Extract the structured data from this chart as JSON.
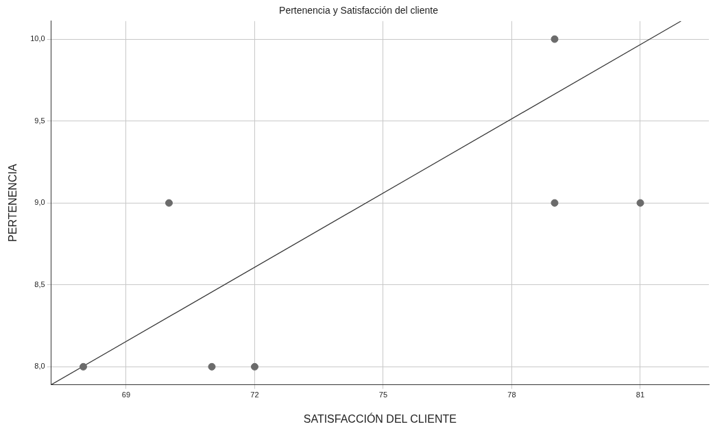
{
  "chart_data": {
    "type": "scatter",
    "title": "Pertenencia y Satisfacción del cliente",
    "xlabel": "SATISFACCIÓN DEL CLIENTE",
    "ylabel": "PERTENENCIA",
    "xlim": [
      67.25,
      82.6
    ],
    "ylim": [
      7.89,
      10.11
    ],
    "xticks": [
      69,
      72,
      75,
      78,
      81
    ],
    "yticks": [
      {
        "value": 8,
        "label": "8,0"
      },
      {
        "value": 8.5,
        "label": "8,5"
      },
      {
        "value": 9,
        "label": "9,0"
      },
      {
        "value": 9.5,
        "label": "9,5"
      },
      {
        "value": 10,
        "label": "10,0"
      }
    ],
    "grid": true,
    "legend": false,
    "marker": "circle",
    "series": [
      {
        "type": "scatter",
        "color": "#6b6b6b",
        "x": [
          68,
          70,
          71,
          72,
          79,
          79,
          81
        ],
        "values": [
          8,
          9,
          8,
          8,
          10,
          9,
          9
        ]
      },
      {
        "type": "line",
        "color": "#333333",
        "marker": "none",
        "line_style": "solid",
        "x": [
          67.25,
          81.95
        ],
        "values": [
          7.89,
          10.11
        ]
      }
    ]
  }
}
